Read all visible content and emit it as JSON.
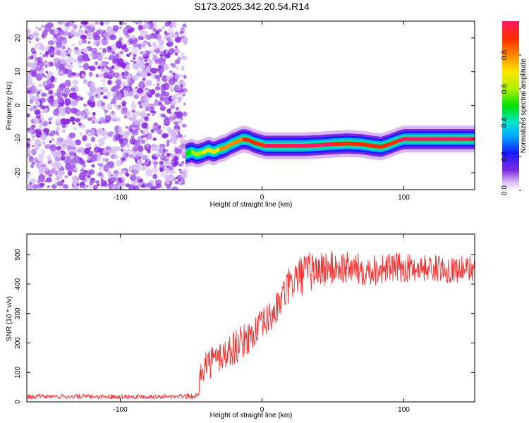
{
  "title": "S173.2025.342.20.54.R14",
  "chart_data": [
    {
      "type": "heatmap",
      "xlabel": "Height of straight line (km)",
      "ylabel": "Frequency (Hz)",
      "xlim": [
        -166,
        150
      ],
      "ylim": [
        -25,
        25
      ],
      "x_ticks": [
        "-100",
        "0",
        "100"
      ],
      "y_ticks": [
        "-20",
        "-10",
        "0",
        "10",
        "20"
      ],
      "noise_region_x": [
        -166,
        -54
      ],
      "ridge": {
        "x": [
          -54,
          -50,
          -46,
          -42,
          -38,
          -34,
          -30,
          -26,
          -22,
          -18,
          -14,
          -10,
          -6,
          -2,
          2,
          10,
          20,
          30,
          40,
          50,
          60,
          70,
          78,
          84,
          90,
          96,
          100,
          110,
          120,
          130,
          140,
          150
        ],
        "freq": [
          -14.5,
          -13.8,
          -14.5,
          -14,
          -13.2,
          -13.8,
          -13,
          -12.5,
          -11.5,
          -10.8,
          -10,
          -10.2,
          -11,
          -11.5,
          -12,
          -12,
          -12,
          -12,
          -11.8,
          -11.5,
          -11.3,
          -11.5,
          -12,
          -12.3,
          -11.5,
          -10.5,
          -10,
          -10,
          -10,
          -10,
          -10,
          -10
        ],
        "amplitude": [
          0.4,
          0.55,
          0.5,
          0.6,
          0.65,
          0.6,
          0.7,
          0.72,
          0.75,
          0.8,
          0.8,
          0.85,
          0.88,
          0.9,
          0.9,
          0.92,
          0.95,
          0.95,
          0.93,
          0.9,
          0.85,
          0.85,
          0.9,
          0.88,
          0.85,
          0.9,
          0.95,
          0.97,
          0.97,
          0.96,
          0.95,
          0.9
        ]
      },
      "colorbar": {
        "label": "Normalized spectral amplitude",
        "range": [
          0,
          1
        ],
        "ticks": [
          "0.0",
          "0.2",
          "0.4",
          "0.6",
          "0.8"
        ]
      }
    },
    {
      "type": "line",
      "xlabel": "Height of straight line (km)",
      "ylabel": "SNR (10 * v/v)",
      "xlim": [
        -166,
        150
      ],
      "ylim": [
        0,
        570
      ],
      "x_ticks": [
        "-100",
        "0",
        "100"
      ],
      "y_ticks": [
        "0",
        "100",
        "200",
        "300",
        "400",
        "500"
      ],
      "line_color": "#ee3333",
      "series": [
        {
          "name": "SNR",
          "x": [
            -166,
            -150,
            -120,
            -90,
            -60,
            -45,
            -43,
            -40,
            -36,
            -32,
            -28,
            -24,
            -20,
            -16,
            -12,
            -8,
            -4,
            0,
            4,
            8,
            12,
            16,
            20,
            24,
            28,
            32,
            40,
            50,
            60,
            70,
            80,
            90,
            100,
            110,
            120,
            130,
            140,
            150
          ],
          "mean": [
            18,
            18,
            18,
            18,
            18,
            20,
            120,
            130,
            135,
            145,
            160,
            165,
            185,
            195,
            210,
            225,
            245,
            260,
            280,
            300,
            330,
            370,
            400,
            420,
            430,
            440,
            450,
            455,
            455,
            450,
            450,
            455,
            455,
            455,
            455,
            450,
            450,
            455
          ],
          "spread": [
            8,
            8,
            8,
            8,
            8,
            10,
            55,
            55,
            55,
            60,
            60,
            60,
            60,
            60,
            55,
            55,
            55,
            55,
            55,
            55,
            55,
            60,
            65,
            70,
            70,
            70,
            65,
            60,
            55,
            55,
            55,
            50,
            50,
            45,
            45,
            45,
            45,
            45
          ]
        }
      ]
    }
  ]
}
